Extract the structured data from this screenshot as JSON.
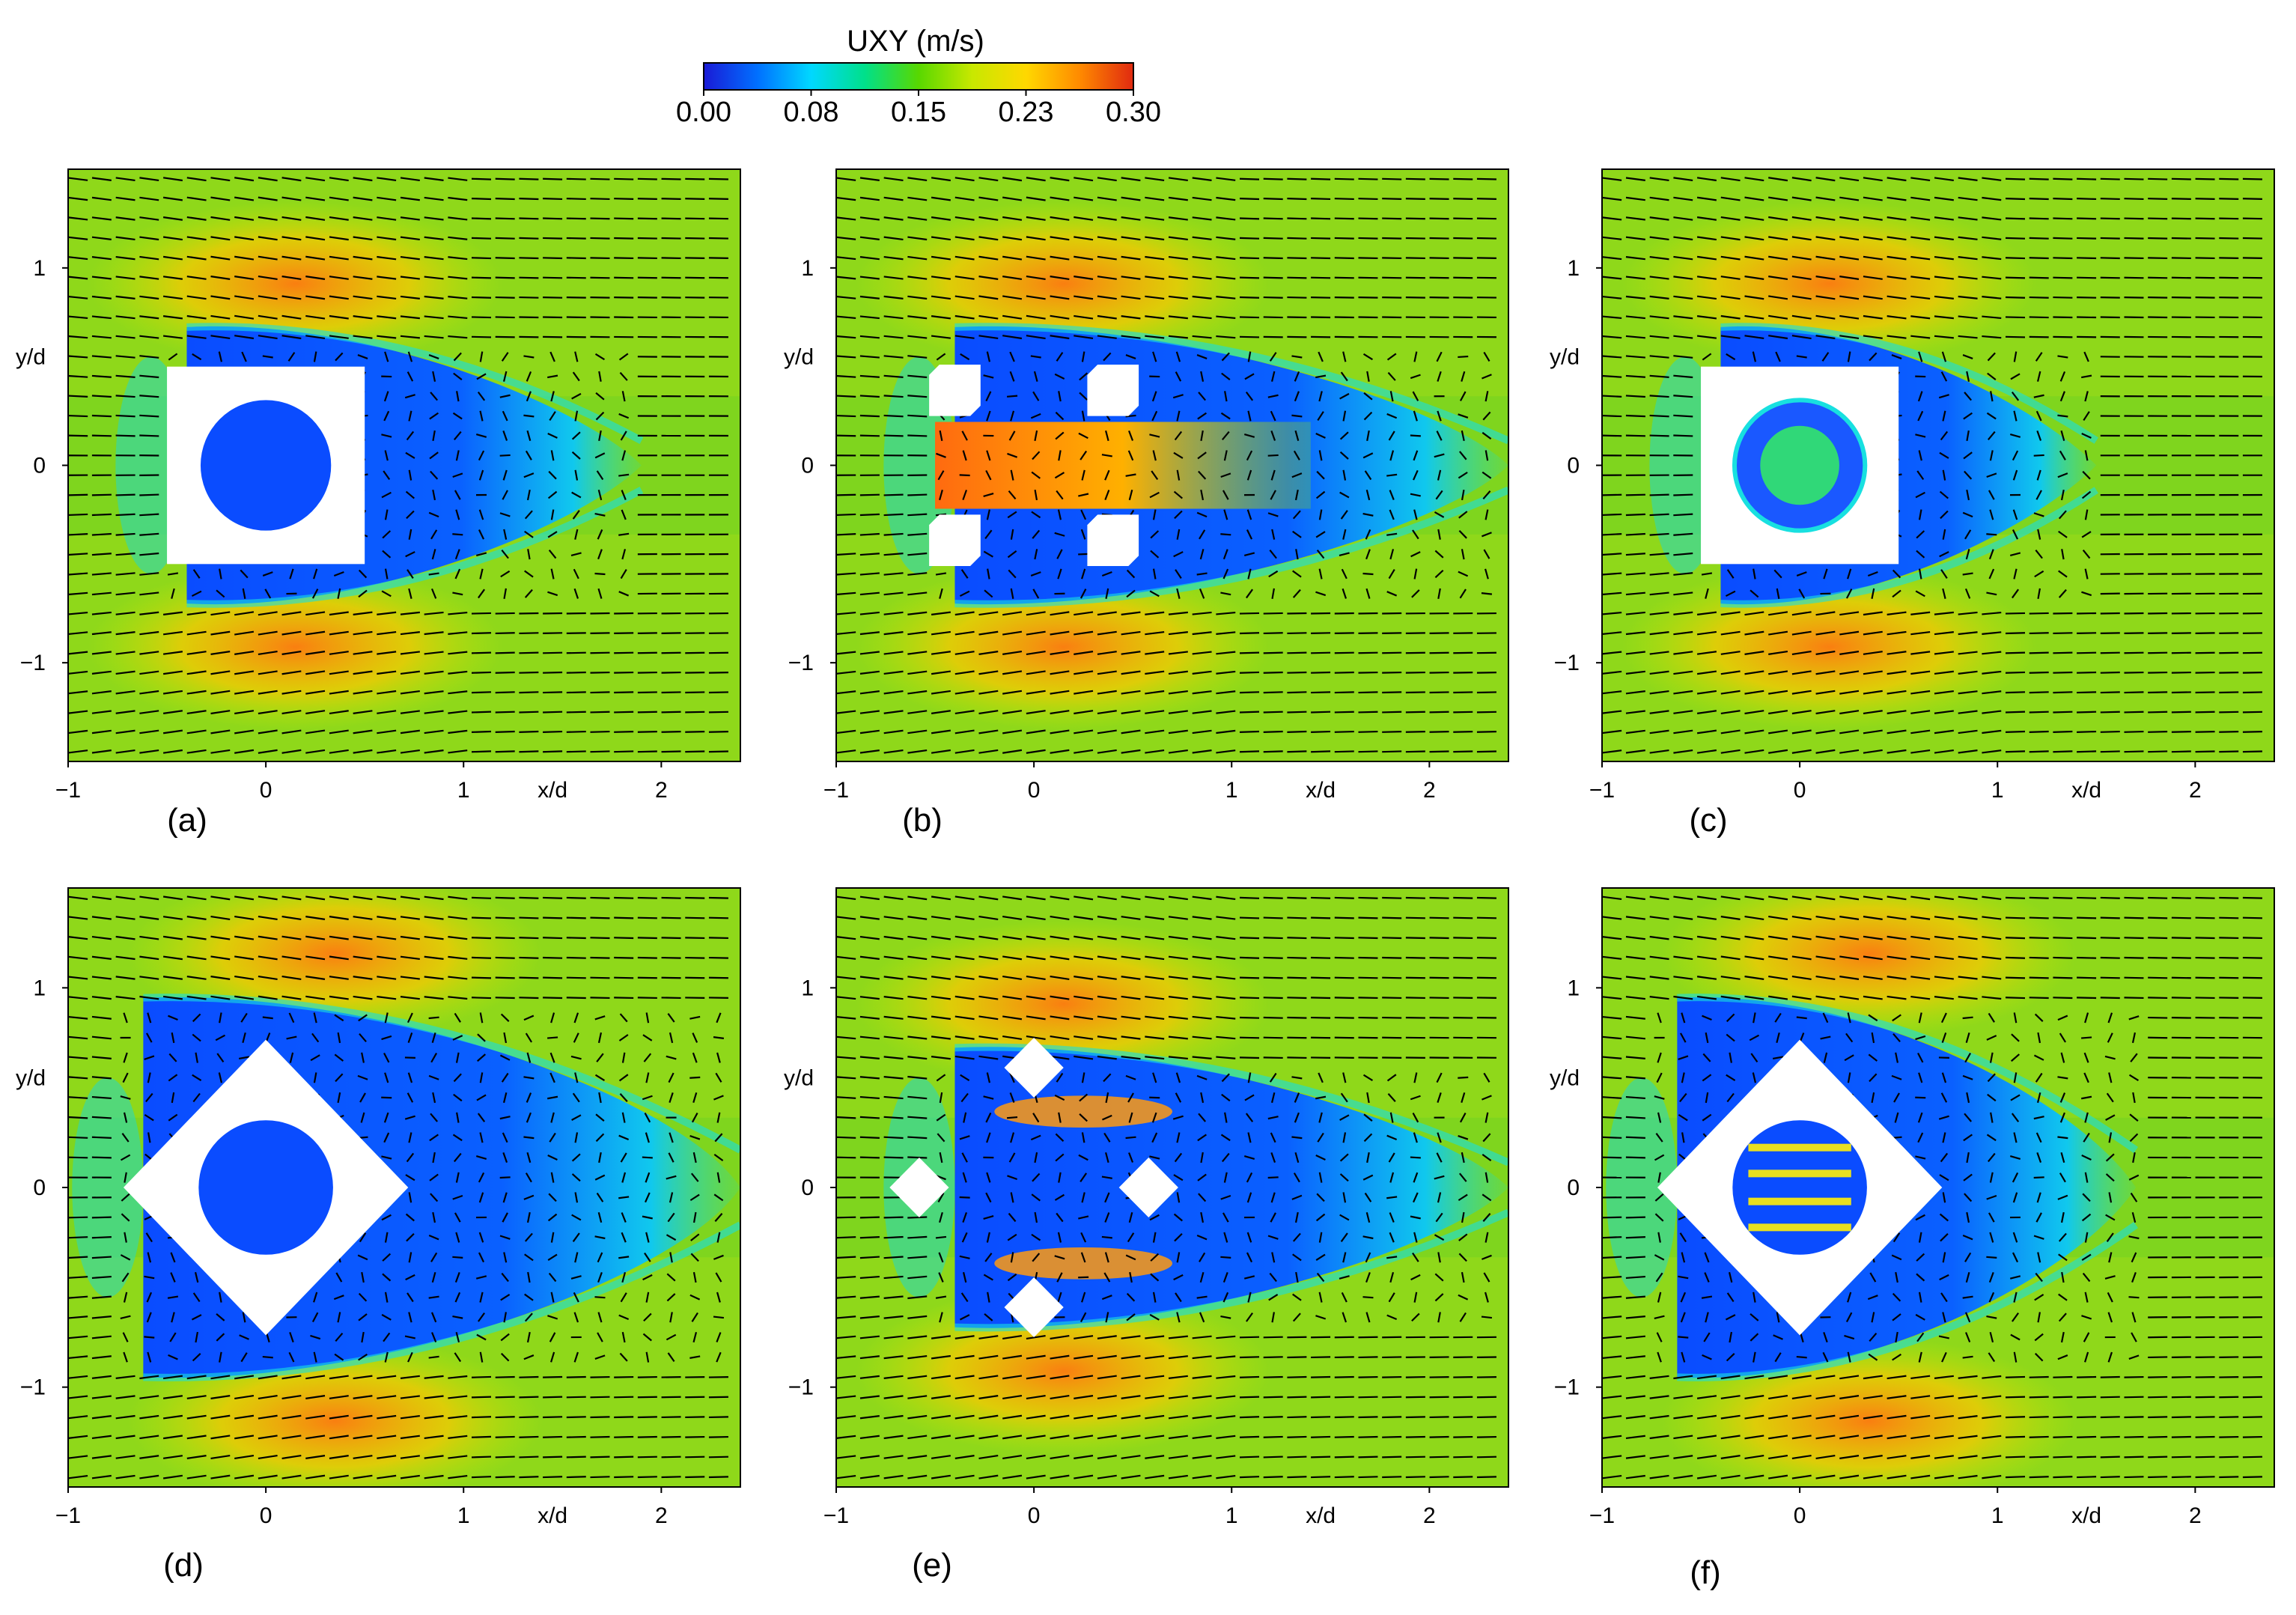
{
  "colorbar": {
    "title": "UXY (m/s)",
    "ticks": [
      "0.00",
      "0.08",
      "0.15",
      "0.23",
      "0.30"
    ],
    "range": [
      0.0,
      0.3
    ],
    "colormap": [
      "#1a1ad6",
      "#0070ff",
      "#00d8ff",
      "#00e08a",
      "#58d800",
      "#c8e800",
      "#ffd800",
      "#ff8a00",
      "#e02a10"
    ]
  },
  "chart_data": [
    {
      "type": "heatmap",
      "panel": "(a)",
      "title": "",
      "xlabel": "x/d",
      "ylabel": "y/d",
      "xlim": [
        -1,
        2.4
      ],
      "ylim": [
        -1.5,
        1.5
      ],
      "xticks": [
        "−1",
        "0",
        "1",
        "2"
      ],
      "yticks": [
        "1",
        "0",
        "−1"
      ],
      "obstacle": "square with circular cavity",
      "wake_extent_xd": 1.9
    },
    {
      "type": "heatmap",
      "panel": "(b)",
      "title": "",
      "xlabel": "x/d",
      "ylabel": "y/d",
      "xlim": [
        -1,
        2.4
      ],
      "ylim": [
        -1.5,
        1.5
      ],
      "xticks": [
        "−1",
        "0",
        "1",
        "2"
      ],
      "yticks": [
        "1",
        "0",
        "−1"
      ],
      "obstacle": "four corner blocks with central jet",
      "wake_extent_xd": 2.4
    },
    {
      "type": "heatmap",
      "panel": "(c)",
      "title": "",
      "xlabel": "x/d",
      "ylabel": "y/d",
      "xlim": [
        -1,
        2.4
      ],
      "ylim": [
        -1.5,
        1.5
      ],
      "xticks": [
        "−1",
        "0",
        "1",
        "2"
      ],
      "yticks": [
        "1",
        "0",
        "−1"
      ],
      "obstacle": "square with ring insert",
      "wake_extent_xd": 1.5
    },
    {
      "type": "heatmap",
      "panel": "(d)",
      "title": "",
      "xlabel": "x/d",
      "ylabel": "y/d",
      "xlim": [
        -1,
        2.4
      ],
      "ylim": [
        -1.5,
        1.5
      ],
      "xticks": [
        "−1",
        "0",
        "1",
        "2"
      ],
      "yticks": [
        "1",
        "0",
        "−1"
      ],
      "obstacle": "diamond with circular cavity",
      "wake_extent_xd": 2.4
    },
    {
      "type": "heatmap",
      "panel": "(e)",
      "title": "",
      "xlabel": "x/d",
      "ylabel": "y/d",
      "xlim": [
        -1,
        2.4
      ],
      "ylim": [
        -1.5,
        1.5
      ],
      "xticks": [
        "−1",
        "0",
        "1",
        "2"
      ],
      "yticks": [
        "1",
        "0",
        "−1"
      ],
      "obstacle": "four diamond blocks",
      "wake_extent_xd": 2.4
    },
    {
      "type": "heatmap",
      "panel": "(f)",
      "title": "",
      "xlabel": "x/d",
      "ylabel": "y/d",
      "xlim": [
        -1,
        2.4
      ],
      "ylim": [
        -1.5,
        1.5
      ],
      "xticks": [
        "−1",
        "0",
        "1",
        "2"
      ],
      "yticks": [
        "1",
        "0",
        "−1"
      ],
      "obstacle": "diamond with slotted insert",
      "wake_extent_xd": 1.7
    }
  ]
}
